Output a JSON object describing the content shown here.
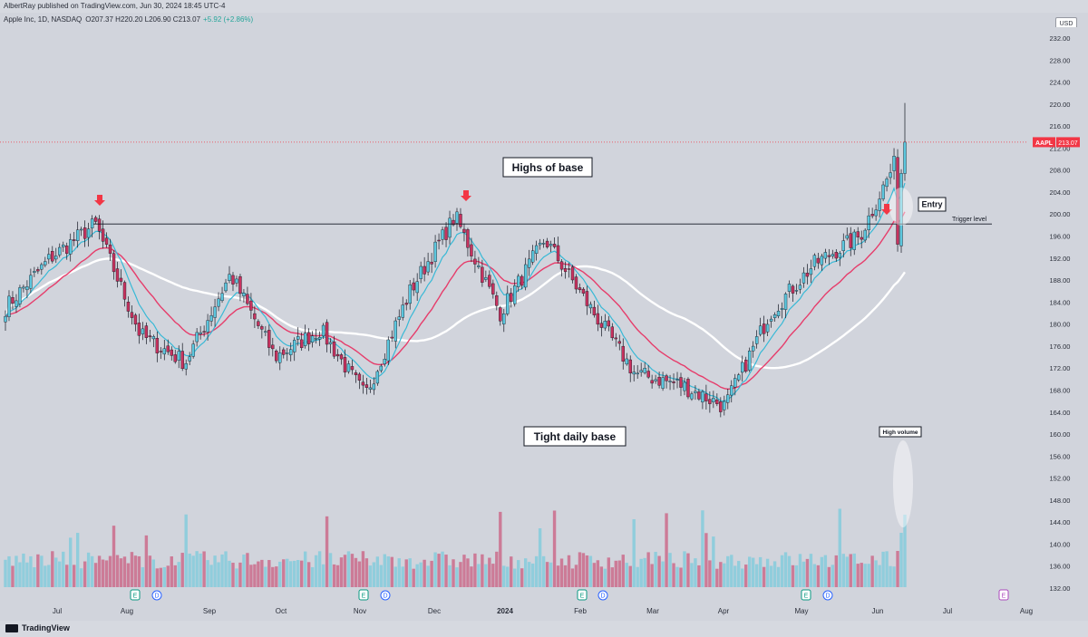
{
  "publisher_line": "AlbertRay published on TradingView.com, Jun 30, 2024 18:45 UTC-4",
  "symbol_line": {
    "name": "Apple Inc, 1D, NASDAQ",
    "ohlc": "O207.37 H220.20 L206.90 C213.07",
    "change": "+5.92 (+2.86%)"
  },
  "currency": "USD",
  "footer_brand": "TradingView",
  "colors": {
    "up": "#5bc6dd",
    "down": "#c8325f",
    "ema_fast": "#38b9d6",
    "ema_mid": "#e63d6b",
    "sma_slow": "#ffffff",
    "price_tag": "#f23645",
    "arrow": "#f23645"
  },
  "chart_data": {
    "type": "candlestick",
    "title": "Apple Inc, 1D, NASDAQ",
    "ylim": [
      130,
      234
    ],
    "y_ticks": [
      132,
      136,
      140,
      144,
      148,
      152,
      156,
      160,
      164,
      168,
      172,
      176,
      180,
      184,
      188,
      192,
      196,
      200,
      204,
      208,
      212,
      216,
      220,
      224,
      228,
      232
    ],
    "x_ticks": [
      "Jul",
      "Aug",
      "Sep",
      "Oct",
      "Nov",
      "Dec",
      "2024",
      "Feb",
      "Mar",
      "Apr",
      "May",
      "Jun",
      "Jul",
      "Aug"
    ],
    "last_price": {
      "symbol": "AAPL",
      "value": "213.07"
    },
    "trigger_level": {
      "value": 198.2,
      "label": "Trigger level"
    },
    "annotations": {
      "highs_of_base": "Highs of base",
      "tight_daily_base": "Tight daily base",
      "entry": "Entry",
      "high_volume": "High volume"
    },
    "earnings_markers": [
      "E",
      "E",
      "E",
      "E",
      "E"
    ],
    "dividend_markers": [
      "D",
      "D",
      "D",
      "D"
    ],
    "key_points": [
      {
        "x": "Jun 2023",
        "close": 183
      },
      {
        "x": "Jul 2023",
        "close": 192
      },
      {
        "x": "Jul 2023 (high)",
        "close": 198.2
      },
      {
        "x": "Aug 2023",
        "close": 178
      },
      {
        "x": "Aug 2023 (low)",
        "close": 173
      },
      {
        "x": "Sep 2023",
        "close": 189
      },
      {
        "x": "Sep 2023 (late)",
        "close": 174
      },
      {
        "x": "Oct 2023",
        "close": 179
      },
      {
        "x": "Oct 2023 (low)",
        "close": 167
      },
      {
        "x": "Nov 2023",
        "close": 186
      },
      {
        "x": "Dec 2023 (high)",
        "close": 199.6
      },
      {
        "x": "2024 (Jan)",
        "close": 182
      },
      {
        "x": "Jan 2024 (high)",
        "close": 195.4
      },
      {
        "x": "Feb 2024",
        "close": 183
      },
      {
        "x": "Mar 2024",
        "close": 171
      },
      {
        "x": "Apr 2024",
        "close": 169
      },
      {
        "x": "Apr 2024 (low)",
        "close": 165
      },
      {
        "x": "May 2024",
        "close": 182
      },
      {
        "x": "May 2024 (late)",
        "close": 191
      },
      {
        "x": "Jun 2024",
        "close": 196
      },
      {
        "x": "Jun 2024 (last)",
        "close": 213.07
      }
    ]
  }
}
